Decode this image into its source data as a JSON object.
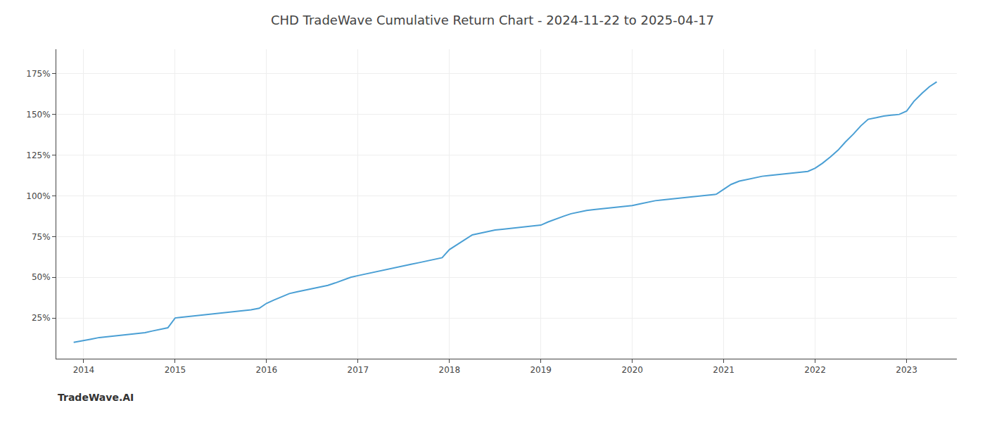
{
  "chart_data": {
    "type": "line",
    "title": "CHD TradeWave Cumulative Return Chart - 2024-11-22 to 2025-04-17",
    "annotations": [
      "TradeWave.AI"
    ],
    "x": [
      2013.89,
      2014.0,
      2014.08,
      2014.17,
      2014.25,
      2014.33,
      2014.42,
      2014.5,
      2014.58,
      2014.67,
      2014.75,
      2014.83,
      2014.92,
      2015.0,
      2015.08,
      2015.17,
      2015.25,
      2015.33,
      2015.42,
      2015.5,
      2015.58,
      2015.67,
      2015.75,
      2015.83,
      2015.92,
      2016.0,
      2016.08,
      2016.17,
      2016.25,
      2016.33,
      2016.42,
      2016.5,
      2016.58,
      2016.67,
      2016.75,
      2016.83,
      2016.92,
      2017.0,
      2017.08,
      2017.17,
      2017.25,
      2017.33,
      2017.42,
      2017.5,
      2017.58,
      2017.67,
      2017.75,
      2017.83,
      2017.92,
      2018.0,
      2018.08,
      2018.17,
      2018.25,
      2018.33,
      2018.42,
      2018.5,
      2018.58,
      2018.67,
      2018.75,
      2018.83,
      2018.92,
      2019.0,
      2019.08,
      2019.17,
      2019.25,
      2019.33,
      2019.42,
      2019.5,
      2019.58,
      2019.67,
      2019.75,
      2019.83,
      2019.92,
      2020.0,
      2020.08,
      2020.17,
      2020.25,
      2020.33,
      2020.42,
      2020.5,
      2020.58,
      2020.67,
      2020.75,
      2020.83,
      2020.92,
      2021.0,
      2021.08,
      2021.17,
      2021.25,
      2021.33,
      2021.42,
      2021.5,
      2021.58,
      2021.67,
      2021.75,
      2021.83,
      2021.92,
      2022.0,
      2022.08,
      2022.17,
      2022.25,
      2022.33,
      2022.42,
      2022.5,
      2022.58,
      2022.67,
      2022.75,
      2022.83,
      2022.92,
      2023.0,
      2023.08,
      2023.17,
      2023.25,
      2023.33
    ],
    "values": [
      10,
      11,
      12,
      13,
      13.5,
      14,
      14.5,
      15,
      15.5,
      16,
      17,
      18,
      19,
      25,
      25.5,
      26,
      26.5,
      27,
      27.5,
      28,
      28.5,
      29,
      29.5,
      30,
      31,
      34,
      36,
      38,
      40,
      41,
      42,
      43,
      44,
      45,
      46.5,
      48,
      50,
      51,
      52,
      53,
      54,
      55,
      56,
      57,
      58,
      59,
      60,
      61,
      62,
      67,
      70,
      73,
      76,
      77,
      78,
      79,
      79.5,
      80,
      80.5,
      81,
      81.5,
      82,
      84,
      86,
      87.5,
      89,
      90,
      91,
      91.5,
      92,
      92.5,
      93,
      93.5,
      94,
      95,
      96,
      97,
      97.5,
      98,
      98.5,
      99,
      99.5,
      100,
      100.5,
      101,
      104,
      107,
      109,
      110,
      111,
      112,
      112.5,
      113,
      113.5,
      114,
      114.5,
      115,
      117,
      120,
      124,
      128,
      133,
      138,
      143,
      147,
      148,
      149,
      149.5,
      150,
      152,
      158,
      163,
      167,
      170
    ],
    "color": "#4a9fd4",
    "xlim": [
      2013.7,
      2023.55
    ],
    "xticks": [
      2014,
      2015,
      2016,
      2017,
      2018,
      2019,
      2020,
      2021,
      2022,
      2023
    ],
    "ylim": [
      0,
      190
    ],
    "yticks": [
      {
        "value": 25,
        "label": "25%"
      },
      {
        "value": 50,
        "label": "50%"
      },
      {
        "value": 75,
        "label": "75%"
      },
      {
        "value": 100,
        "label": "100%"
      },
      {
        "value": 125,
        "label": "125%"
      },
      {
        "value": 150,
        "label": "150%"
      },
      {
        "value": 175,
        "label": "175%"
      }
    ],
    "grid": true
  }
}
